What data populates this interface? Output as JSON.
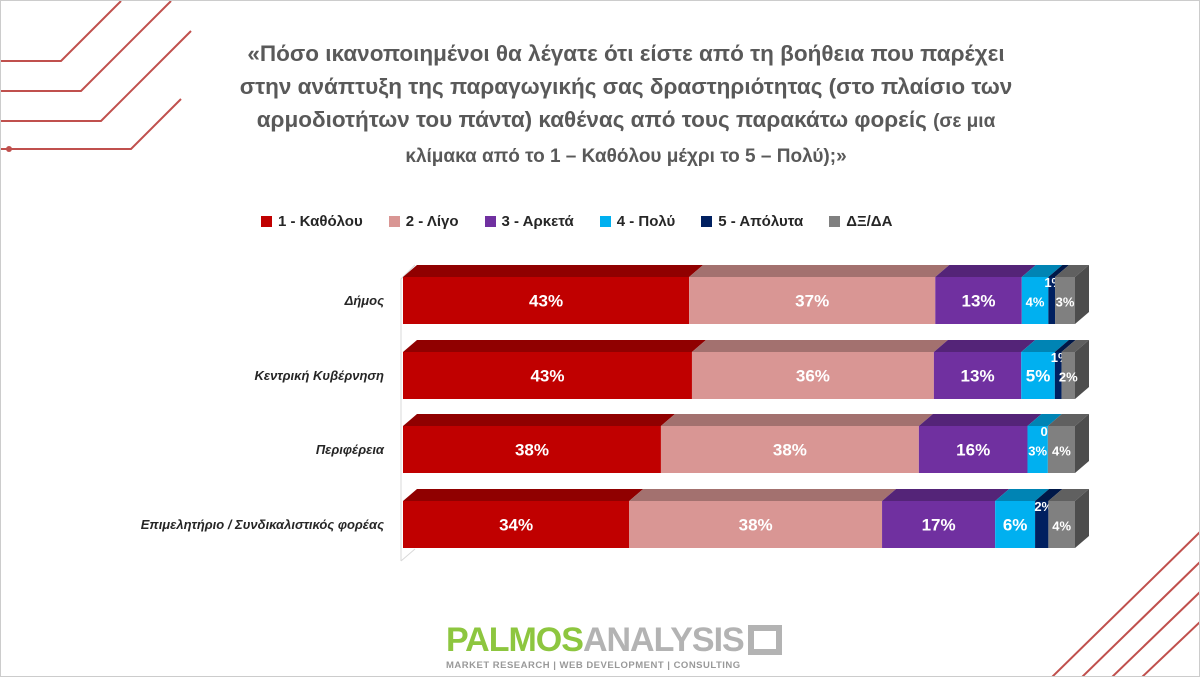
{
  "title": "«Πόσο ικανοποιημένοι θα λέγατε ότι είστε από τη βοήθεια που παρέχει στην ανάπτυξη της παραγωγικής σας δραστηριότητας (στο πλαίσιο των αρμοδιοτήτων του πάντα) καθένας από τους παρακάτω φορείς",
  "title_sub": "(σε μια κλίμακα από το 1 – Καθόλου μέχρι το 5 – Πολύ);»",
  "chart_data": {
    "type": "bar",
    "orientation": "horizontal-stacked-3d",
    "categories": [
      "Δήμος",
      "Κεντρική Κυβέρνηση",
      "Περιφέρεια",
      "Επιμελητήριο / Συνδικαλιστικός φορέας"
    ],
    "series": [
      {
        "name": "1 - Καθόλου",
        "color": "#C00000",
        "values": [
          43,
          43,
          38,
          34
        ]
      },
      {
        "name": "2 - Λίγο",
        "color": "#D99694",
        "values": [
          37,
          36,
          38,
          38
        ]
      },
      {
        "name": "3 - Αρκετά",
        "color": "#7030A0",
        "values": [
          13,
          13,
          16,
          17
        ]
      },
      {
        "name": "4 - Πολύ",
        "color": "#00B0F0",
        "values": [
          4,
          5,
          3,
          6
        ]
      },
      {
        "name": "5 - Απόλυτα",
        "color": "#002060",
        "values": [
          1,
          1,
          0,
          2
        ]
      },
      {
        "name": "ΔΞ/ΔΑ",
        "color": "#808080",
        "values": [
          3,
          2,
          4,
          4
        ]
      }
    ],
    "unit": "%",
    "legend": "top"
  },
  "logo": {
    "brand1": "PALMOS",
    "brand2": "ANALYSIS",
    "tagline": "MARKET RESEARCH | WEB DEVELOPMENT | CONSULTING"
  }
}
